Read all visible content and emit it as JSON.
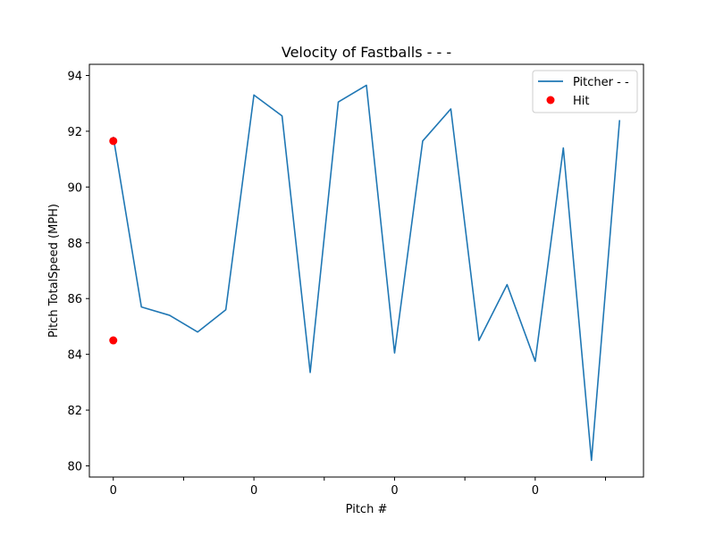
{
  "chart_data": {
    "type": "line",
    "title": "Velocity of Fastballs - - -",
    "xlabel": "Pitch #",
    "ylabel": "Pitch TotalSpeed (MPH)",
    "xlim": [
      -0.85,
      18.85
    ],
    "ylim": [
      79.6,
      94.4
    ],
    "yticks": [
      80,
      82,
      84,
      86,
      88,
      90,
      92,
      94
    ],
    "xticks": [
      {
        "x": 0,
        "label": "0"
      },
      {
        "x": 2.5,
        "label": ""
      },
      {
        "x": 5,
        "label": "0"
      },
      {
        "x": 7.5,
        "label": ""
      },
      {
        "x": 10,
        "label": "0"
      },
      {
        "x": 12.5,
        "label": ""
      },
      {
        "x": 15,
        "label": "0"
      },
      {
        "x": 17.5,
        "label": ""
      }
    ],
    "series": [
      {
        "name": "Pitcher - -",
        "kind": "line",
        "color": "#1f77b4",
        "x": [
          0,
          1,
          2,
          3,
          4,
          5,
          6,
          7,
          8,
          9,
          10,
          11,
          12,
          13,
          14,
          15,
          16,
          17,
          18
        ],
        "y": [
          91.8,
          85.7,
          85.4,
          84.8,
          85.6,
          93.3,
          92.55,
          83.35,
          93.05,
          93.65,
          84.05,
          91.65,
          92.8,
          84.5,
          86.5,
          83.75,
          91.4,
          80.2,
          92.4
        ]
      },
      {
        "name": "Hit",
        "kind": "scatter",
        "color": "#ff0000",
        "x": [
          0,
          0
        ],
        "y": [
          91.65,
          84.5
        ]
      }
    ],
    "legend": {
      "position": "top-right"
    },
    "grid": false
  }
}
